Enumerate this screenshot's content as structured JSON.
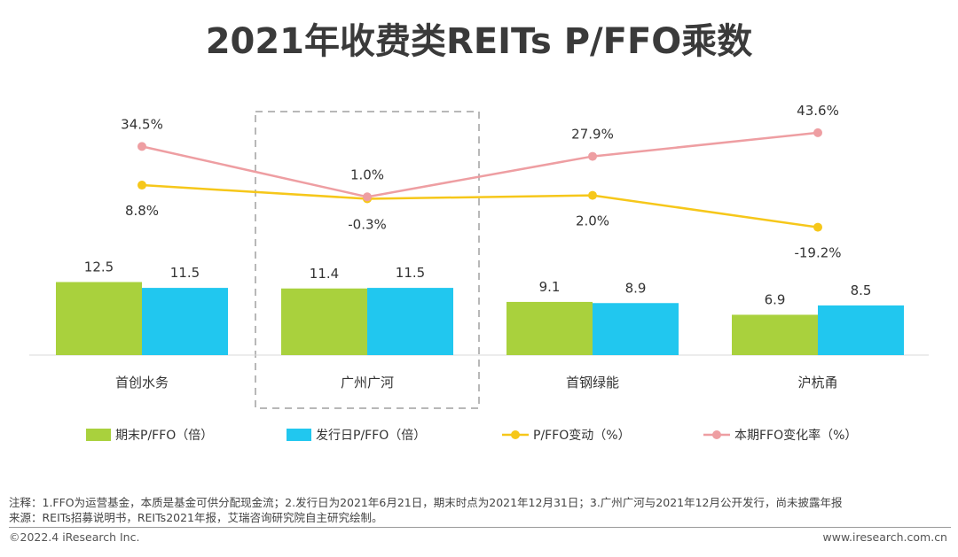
{
  "header": {
    "title": "2021年收费类REITs P/FFO乘数"
  },
  "colors": {
    "bar_end": "#a9d13d",
    "bar_issue": "#21c7ef",
    "line_change": "#f6c71a",
    "line_ffo": "#ee9ea2",
    "highlight_box": "#b8b8b8"
  },
  "chart_data": {
    "type": "bar+line",
    "title": "2021年收费类REITs P/FFO乘数",
    "categories": [
      "首创水务",
      "广州广河",
      "首钢绿能",
      "沪杭甬"
    ],
    "bar_series": [
      {
        "name": "期末P/FFO（倍）",
        "values": [
          12.5,
          11.4,
          9.1,
          6.9
        ],
        "labels": [
          "12.5",
          "11.4",
          "9.1",
          "6.9"
        ]
      },
      {
        "name": "发行日P/FFO（倍）",
        "values": [
          11.5,
          11.5,
          8.9,
          8.5
        ],
        "labels": [
          "11.5",
          "11.5",
          "8.9",
          "8.5"
        ]
      }
    ],
    "line_series": [
      {
        "name": "P/FFO变动（%）",
        "values": [
          8.8,
          -0.3,
          2.0,
          -19.2
        ],
        "labels": [
          "8.8%",
          "-0.3%",
          "2.0%",
          "-19.2%"
        ]
      },
      {
        "name": "本期FFO变化率（%）",
        "values": [
          34.5,
          1.0,
          27.9,
          43.6
        ],
        "labels": [
          "34.5%",
          "1.0%",
          "27.9%",
          "43.6%"
        ]
      }
    ],
    "highlighted_category": "广州广河",
    "legend_position": "bottom"
  },
  "footnotes": {
    "note": "注释：1.FFO为运营基金，本质是基金可供分配现金流；2.发行日为2021年6月21日，期末时点为2021年12月31日；3.广州广河与2021年12月公开发行，尚未披露年报",
    "source": "来源：REITs招募说明书，REITs2021年报，艾瑞咨询研究院自主研究绘制。"
  },
  "footer": {
    "copyright": "©2022.4 iResearch Inc.",
    "site": "www.iresearch.com.cn"
  }
}
